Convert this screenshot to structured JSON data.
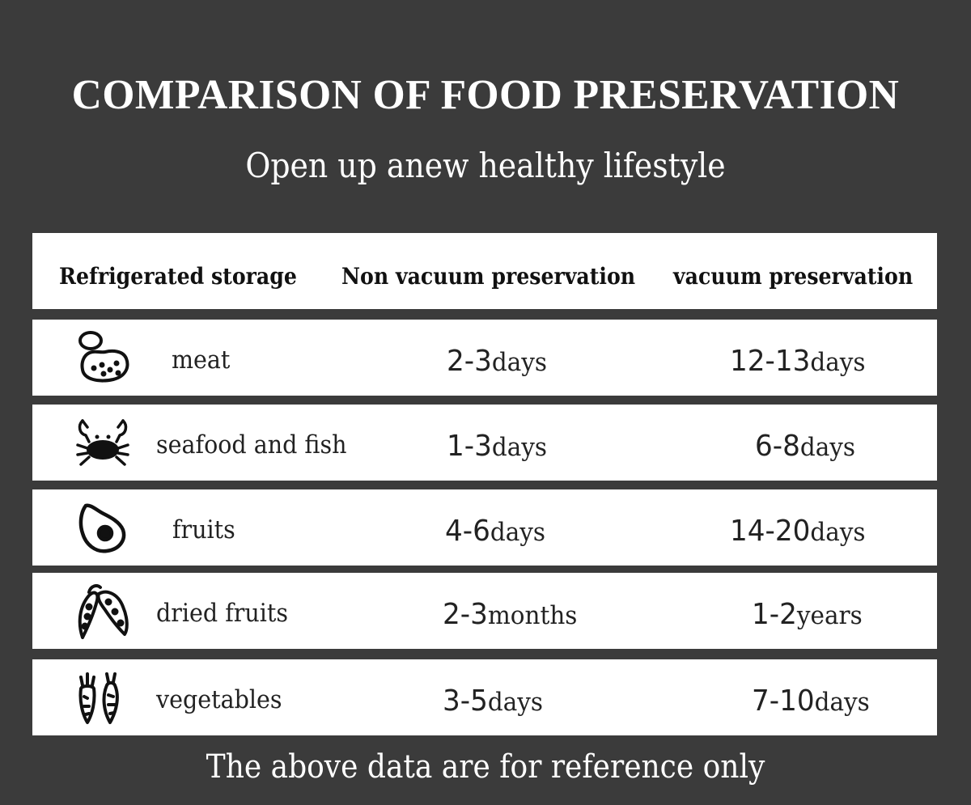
{
  "title": "COMPARISON OF FOOD PRESERVATION",
  "subtitle": "Open up anew healthy lifestyle",
  "headers": {
    "col1": "Refrigerated storage",
    "col2": "Non vacuum preservation",
    "col3": "vacuum preservation"
  },
  "rows": [
    {
      "icon": "meat-icon",
      "food": "meat",
      "non_vacuum_num": "2-3",
      "non_vacuum_unit": "days",
      "vacuum_num": "12-13",
      "vacuum_unit": "days"
    },
    {
      "icon": "crab-icon",
      "food": "seafood and fish",
      "non_vacuum_num": "1-3",
      "non_vacuum_unit": "days",
      "vacuum_num": "6-8",
      "vacuum_unit": "days"
    },
    {
      "icon": "avocado-icon",
      "food": "fruits",
      "non_vacuum_num": "4-6",
      "non_vacuum_unit": "days",
      "vacuum_num": "14-20",
      "vacuum_unit": "days"
    },
    {
      "icon": "peapod-icon",
      "food": "dried fruits",
      "non_vacuum_num": "2-3",
      "non_vacuum_unit": "months",
      "vacuum_num": "1-2",
      "vacuum_unit": "years"
    },
    {
      "icon": "carrot-icon",
      "food": "vegetables",
      "non_vacuum_num": "3-5",
      "non_vacuum_unit": "days",
      "vacuum_num": "7-10",
      "vacuum_unit": "days"
    }
  ],
  "footer": "The above data are for reference only"
}
